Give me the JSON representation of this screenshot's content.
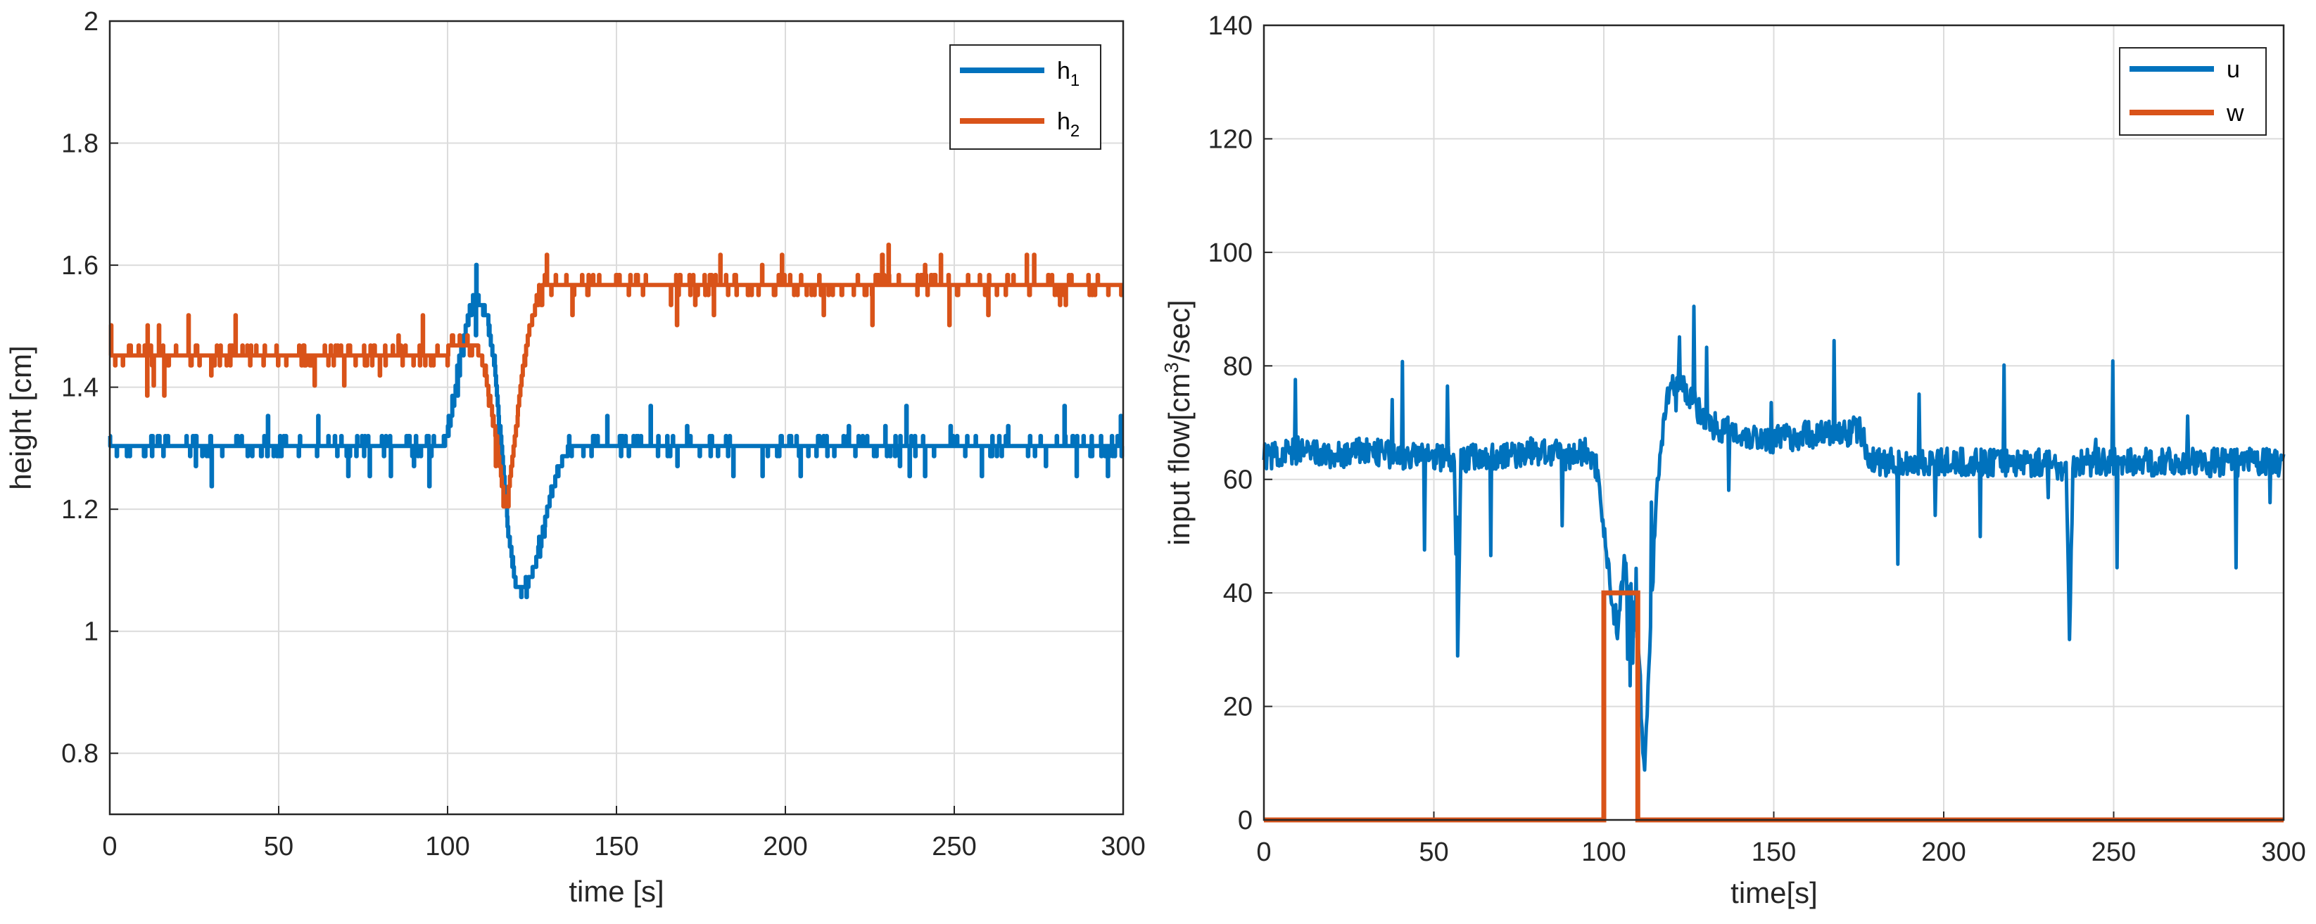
{
  "colors": {
    "blue": "#0072BD",
    "orange": "#D95319",
    "grid": "#dcdcdc",
    "axis": "#262626"
  },
  "chart_data": [
    {
      "type": "line",
      "title": "",
      "xlabel": "time [s]",
      "ylabel": "height [cm]",
      "xlim": [
        0,
        300
      ],
      "ylim": [
        0.7,
        2.0
      ],
      "xticks": [
        0,
        50,
        100,
        150,
        200,
        250,
        300
      ],
      "xtick_labels": [
        "0",
        "50",
        "100",
        "150",
        "200",
        "250",
        "300"
      ],
      "yticks": [
        0.8,
        1.0,
        1.2,
        1.4,
        1.6,
        1.8,
        2.0
      ],
      "ytick_labels": [
        "0.8",
        "1",
        "1.2",
        "1.4",
        "1.6",
        "1.8",
        "2"
      ],
      "grid": true,
      "legend_position": "top-right",
      "series": [
        {
          "name": "h1",
          "label_base": "h",
          "label_sub": "1",
          "x": [
            0,
            5,
            10,
            20,
            30,
            40,
            50,
            60,
            70,
            80,
            90,
            98,
            100,
            102,
            104,
            106,
            108,
            110,
            112,
            114,
            116,
            118,
            120,
            122,
            124,
            126,
            128,
            130,
            132,
            134,
            136,
            140,
            150,
            160,
            170,
            180,
            190,
            200,
            210,
            220,
            230,
            240,
            250,
            260,
            270,
            280,
            290,
            300
          ],
          "y": [
            1.3,
            1.3,
            1.3,
            1.3,
            1.3,
            1.3,
            1.3,
            1.3,
            1.3,
            1.3,
            1.3,
            1.3,
            1.32,
            1.38,
            1.46,
            1.51,
            1.54,
            1.54,
            1.51,
            1.43,
            1.3,
            1.16,
            1.08,
            1.07,
            1.08,
            1.11,
            1.16,
            1.21,
            1.25,
            1.28,
            1.3,
            1.3,
            1.3,
            1.3,
            1.3,
            1.3,
            1.3,
            1.3,
            1.3,
            1.3,
            1.3,
            1.3,
            1.3,
            1.3,
            1.3,
            1.3,
            1.3,
            1.31
          ]
        },
        {
          "name": "h2",
          "label_base": "h",
          "label_sub": "2",
          "x": [
            0,
            5,
            10,
            20,
            30,
            40,
            50,
            60,
            70,
            80,
            90,
            100,
            104,
            108,
            110,
            112,
            114,
            116,
            117,
            118,
            120,
            122,
            124,
            126,
            128,
            130,
            135,
            140,
            150,
            160,
            170,
            180,
            190,
            200,
            210,
            220,
            230,
            240,
            250,
            260,
            270,
            280,
            290,
            300
          ],
          "y": [
            1.46,
            1.46,
            1.46,
            1.46,
            1.46,
            1.46,
            1.46,
            1.46,
            1.46,
            1.46,
            1.46,
            1.46,
            1.47,
            1.47,
            1.45,
            1.4,
            1.33,
            1.25,
            1.21,
            1.23,
            1.32,
            1.42,
            1.49,
            1.53,
            1.56,
            1.57,
            1.57,
            1.57,
            1.57,
            1.57,
            1.57,
            1.57,
            1.57,
            1.57,
            1.57,
            1.57,
            1.57,
            1.57,
            1.57,
            1.57,
            1.57,
            1.57,
            1.57,
            1.57
          ]
        }
      ]
    },
    {
      "type": "line",
      "title": "",
      "xlabel": "time[s]",
      "ylabel_prefix": "input flow[cm",
      "ylabel_sup": "3",
      "ylabel_suffix": "/sec]",
      "xlim": [
        0,
        300
      ],
      "ylim": [
        0,
        140
      ],
      "xticks": [
        0,
        50,
        100,
        150,
        200,
        250,
        300
      ],
      "xtick_labels": [
        "0",
        "50",
        "100",
        "150",
        "200",
        "250",
        "300"
      ],
      "yticks": [
        0,
        20,
        40,
        60,
        80,
        100,
        120,
        140
      ],
      "ytick_labels": [
        "0",
        "20",
        "40",
        "60",
        "80",
        "100",
        "120",
        "140"
      ],
      "grid": true,
      "legend_position": "top-right",
      "series": [
        {
          "name": "u",
          "x": [
            0,
            10,
            20,
            30,
            40,
            50,
            56,
            57,
            58,
            60,
            70,
            80,
            90,
            95,
            98,
            100,
            102,
            104,
            106,
            108,
            110,
            112,
            114,
            116,
            118,
            120,
            122,
            124,
            126,
            128,
            130,
            140,
            150,
            160,
            170,
            175,
            178,
            180,
            190,
            200,
            210,
            220,
            230,
            236,
            237,
            238,
            240,
            250,
            260,
            270,
            280,
            290,
            300
          ],
          "y": [
            64,
            65,
            64,
            65,
            64,
            64,
            64,
            31,
            63,
            64,
            64,
            65,
            64,
            65,
            62,
            52,
            40,
            34,
            45,
            40,
            32,
            8,
            38,
            62,
            72,
            77,
            77,
            76,
            74,
            72,
            70,
            68,
            67,
            68,
            68,
            69,
            64,
            63,
            63,
            63,
            63,
            63,
            63,
            62,
            33,
            62,
            63,
            63,
            63,
            63,
            63,
            63,
            63
          ]
        },
        {
          "name": "w",
          "x": [
            0,
            100,
            100,
            110,
            110,
            300
          ],
          "y": [
            0,
            0,
            40,
            40,
            0,
            0
          ]
        }
      ]
    }
  ]
}
